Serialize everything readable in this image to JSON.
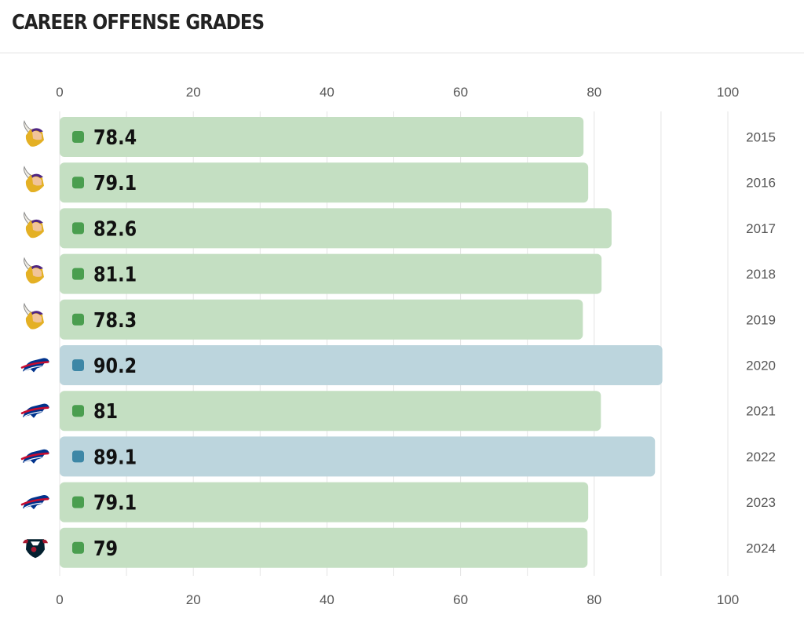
{
  "header": {
    "title": "CAREER OFFENSE GRADES"
  },
  "colors": {
    "green_bar": "#c4dfc2",
    "green_dot": "#4a9e4f",
    "blue_bar": "#bcd5dd",
    "blue_dot": "#3d87a6",
    "grid": "#e4e4e4",
    "vikings_purple": "#4f2683",
    "vikings_gold": "#e4b024",
    "bills_blue": "#00338d",
    "bills_red": "#c60c30",
    "texans_navy": "#03202f",
    "texans_red": "#a71930"
  },
  "chart_data": {
    "type": "bar",
    "orientation": "horizontal",
    "title": "CAREER OFFENSE GRADES",
    "xlim": [
      0,
      100
    ],
    "xticks": [
      0,
      20,
      40,
      60,
      80,
      100
    ],
    "grid": true,
    "categories": [
      "2015",
      "2016",
      "2017",
      "2018",
      "2019",
      "2020",
      "2021",
      "2022",
      "2023",
      "2024"
    ],
    "values": [
      78.4,
      79.1,
      82.6,
      81.1,
      78.3,
      90.2,
      81,
      89.1,
      79.1,
      79
    ],
    "value_labels": [
      "78.4",
      "79.1",
      "82.6",
      "81.1",
      "78.3",
      "90.2",
      "81",
      "89.1",
      "79.1",
      "79"
    ],
    "team_icons": [
      "vikings-icon",
      "vikings-icon",
      "vikings-icon",
      "vikings-icon",
      "vikings-icon",
      "bills-icon",
      "bills-icon",
      "bills-icon",
      "bills-icon",
      "texans-icon"
    ],
    "bar_colors": [
      "green",
      "green",
      "green",
      "green",
      "green",
      "blue",
      "green",
      "blue",
      "green",
      "green"
    ]
  }
}
